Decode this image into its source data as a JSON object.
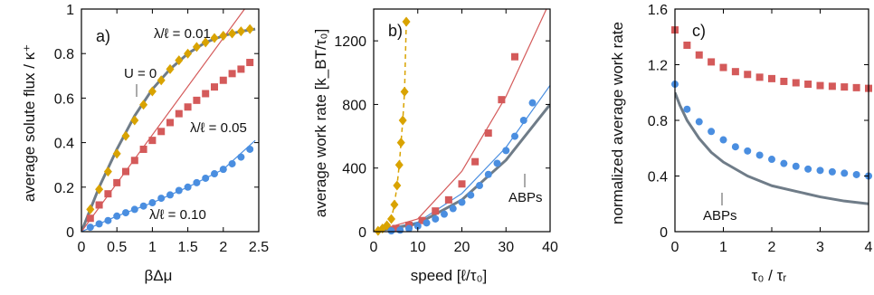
{
  "colors": {
    "gold": "#d9a300",
    "red": "#d45a5a",
    "blue": "#4a8ee0",
    "gray": "#6f7c88",
    "frame": "#000000"
  },
  "chart_data": [
    {
      "type": "scatter",
      "panel_label": "a)",
      "xlabel": "βΔμ",
      "ylabel": "average solute flux / κ⁺",
      "xlim": [
        0,
        2.5
      ],
      "ylim": [
        0,
        1
      ],
      "xticks": [
        0,
        0.5,
        1,
        1.5,
        2,
        2.5
      ],
      "xtick_labels": [
        "0",
        "0.5",
        "1",
        "1.5",
        "2",
        "2.5"
      ],
      "yticks": [
        0,
        0.2,
        0.4,
        0.6,
        0.8,
        1
      ],
      "ytick_labels": [
        "0",
        "0.2",
        "0.4",
        "0.6",
        "0.8",
        "1"
      ],
      "grid": false,
      "annotations": [
        "λ/ℓ = 0.01",
        "U = 0",
        "λ/ℓ = 0.05",
        "λ/ℓ = 0.10"
      ],
      "series": [
        {
          "color": "gold",
          "marker": "diamond",
          "x": [
            0.125,
            0.25,
            0.375,
            0.5,
            0.625,
            0.75,
            0.875,
            1.0,
            1.125,
            1.25,
            1.375,
            1.5,
            1.625,
            1.75,
            1.875,
            2.0,
            2.125,
            2.25,
            2.375
          ],
          "y": [
            0.1,
            0.19,
            0.27,
            0.35,
            0.43,
            0.5,
            0.57,
            0.63,
            0.68,
            0.73,
            0.77,
            0.8,
            0.83,
            0.85,
            0.87,
            0.88,
            0.89,
            0.9,
            0.91
          ]
        },
        {
          "color": "red",
          "marker": "square",
          "x": [
            0.125,
            0.25,
            0.375,
            0.5,
            0.625,
            0.75,
            0.875,
            1.0,
            1.125,
            1.25,
            1.375,
            1.5,
            1.625,
            1.75,
            1.875,
            2.0,
            2.125,
            2.25,
            2.375
          ],
          "y": [
            0.06,
            0.12,
            0.17,
            0.22,
            0.27,
            0.32,
            0.37,
            0.41,
            0.45,
            0.49,
            0.53,
            0.56,
            0.59,
            0.62,
            0.65,
            0.68,
            0.71,
            0.73,
            0.76
          ]
        },
        {
          "color": "blue",
          "marker": "circle",
          "x": [
            0.125,
            0.25,
            0.375,
            0.5,
            0.625,
            0.75,
            0.875,
            1.0,
            1.125,
            1.25,
            1.375,
            1.5,
            1.625,
            1.75,
            1.875,
            2.0,
            2.125,
            2.25,
            2.375
          ],
          "y": [
            0.02,
            0.035,
            0.05,
            0.07,
            0.085,
            0.1,
            0.115,
            0.13,
            0.15,
            0.165,
            0.185,
            0.2,
            0.22,
            0.24,
            0.26,
            0.28,
            0.305,
            0.335,
            0.37
          ]
        }
      ],
      "lines": [
        {
          "color": "gray",
          "width": 3,
          "x": [
            0,
            0.25,
            0.5,
            0.75,
            1.0,
            1.25,
            1.5,
            1.75,
            2.0,
            2.25,
            2.45
          ],
          "y": [
            0,
            0.2,
            0.37,
            0.52,
            0.64,
            0.73,
            0.8,
            0.85,
            0.88,
            0.9,
            0.91
          ]
        },
        {
          "color": "red",
          "width": 1.2,
          "x": [
            0,
            2.3
          ],
          "y": [
            0,
            1.0
          ]
        },
        {
          "color": "blue",
          "width": 1.2,
          "x": [
            0,
            0.5,
            1.0,
            1.5,
            2.0,
            2.45
          ],
          "y": [
            0,
            0.07,
            0.13,
            0.2,
            0.28,
            0.41
          ]
        }
      ]
    },
    {
      "type": "scatter",
      "panel_label": "b)",
      "xlabel": "speed [ℓ/τ₀]",
      "ylabel": "average work rate [k_BT/τ₀]",
      "xlim": [
        0,
        40
      ],
      "ylim": [
        0,
        1400
      ],
      "xticks": [
        0,
        10,
        20,
        30,
        40
      ],
      "xtick_labels": [
        "0",
        "10",
        "20",
        "30",
        "40"
      ],
      "yticks": [
        0,
        400,
        800,
        1200
      ],
      "ytick_labels": [
        "0",
        "400",
        "800",
        "1200"
      ],
      "grid": false,
      "annotations": [
        "ABPs"
      ],
      "series": [
        {
          "color": "gold",
          "marker": "diamond",
          "dashed_line": true,
          "x": [
            1,
            2,
            3,
            4,
            4.7,
            5.3,
            5.8,
            6.2,
            6.6,
            7.0,
            7.4
          ],
          "y": [
            5,
            20,
            40,
            80,
            170,
            290,
            420,
            560,
            700,
            880,
            1320
          ]
        },
        {
          "color": "red",
          "marker": "square",
          "x": [
            5,
            8,
            11,
            14,
            17,
            20,
            23,
            26,
            29,
            32
          ],
          "y": [
            20,
            40,
            70,
            130,
            200,
            300,
            440,
            620,
            830,
            1100
          ]
        },
        {
          "color": "blue",
          "marker": "circle",
          "x": [
            4,
            6,
            8,
            10,
            12,
            14,
            16,
            18,
            20,
            22,
            24,
            26,
            28,
            30,
            32,
            34,
            36
          ],
          "y": [
            5,
            10,
            20,
            35,
            55,
            80,
            110,
            145,
            185,
            230,
            290,
            360,
            430,
            510,
            600,
            700,
            810
          ]
        }
      ],
      "lines": [
        {
          "color": "red",
          "width": 1.2,
          "x": [
            0,
            10,
            20,
            30,
            40
          ],
          "y": [
            0,
            80,
            380,
            850,
            1450
          ]
        },
        {
          "color": "blue",
          "width": 1.2,
          "x": [
            0,
            10,
            20,
            30,
            40
          ],
          "y": [
            0,
            60,
            240,
            530,
            920
          ]
        },
        {
          "color": "gray",
          "width": 3,
          "x": [
            0,
            10,
            20,
            30,
            40
          ],
          "y": [
            0,
            50,
            200,
            450,
            800
          ]
        }
      ]
    },
    {
      "type": "scatter",
      "panel_label": "c)",
      "xlabel": "τ₀ / τᵣ",
      "ylabel": "normalized average work rate",
      "xlim": [
        0,
        4
      ],
      "ylim": [
        0,
        1.6
      ],
      "xticks": [
        0,
        1,
        2,
        3,
        4
      ],
      "xtick_labels": [
        "0",
        "1",
        "2",
        "3",
        "4"
      ],
      "yticks": [
        0,
        0.4,
        0.8,
        1.2,
        1.6
      ],
      "ytick_labels": [
        "0",
        "0.4",
        "0.8",
        "1.2",
        "1.6"
      ],
      "grid": false,
      "annotations": [
        "ABPs"
      ],
      "series": [
        {
          "color": "red",
          "marker": "square",
          "x": [
            0,
            0.25,
            0.5,
            0.75,
            1.0,
            1.25,
            1.5,
            1.75,
            2.0,
            2.25,
            2.5,
            2.75,
            3.0,
            3.25,
            3.5,
            3.75,
            4.0
          ],
          "y": [
            1.45,
            1.34,
            1.27,
            1.22,
            1.18,
            1.15,
            1.13,
            1.11,
            1.1,
            1.08,
            1.07,
            1.06,
            1.05,
            1.045,
            1.04,
            1.035,
            1.03
          ]
        },
        {
          "color": "blue",
          "marker": "circle",
          "x": [
            0,
            0.25,
            0.5,
            0.75,
            1.0,
            1.25,
            1.5,
            1.75,
            2.0,
            2.25,
            2.5,
            2.75,
            3.0,
            3.25,
            3.5,
            3.75,
            4.0
          ],
          "y": [
            1.06,
            0.88,
            0.79,
            0.72,
            0.66,
            0.61,
            0.58,
            0.55,
            0.52,
            0.49,
            0.47,
            0.45,
            0.44,
            0.43,
            0.42,
            0.41,
            0.4
          ]
        }
      ],
      "lines": [
        {
          "color": "gray",
          "width": 3,
          "x": [
            0,
            0.1,
            0.25,
            0.5,
            0.75,
            1.0,
            1.5,
            2.0,
            2.5,
            3.0,
            3.5,
            4.0
          ],
          "y": [
            1.0,
            0.91,
            0.8,
            0.67,
            0.57,
            0.5,
            0.4,
            0.33,
            0.29,
            0.25,
            0.22,
            0.2
          ]
        }
      ]
    }
  ]
}
